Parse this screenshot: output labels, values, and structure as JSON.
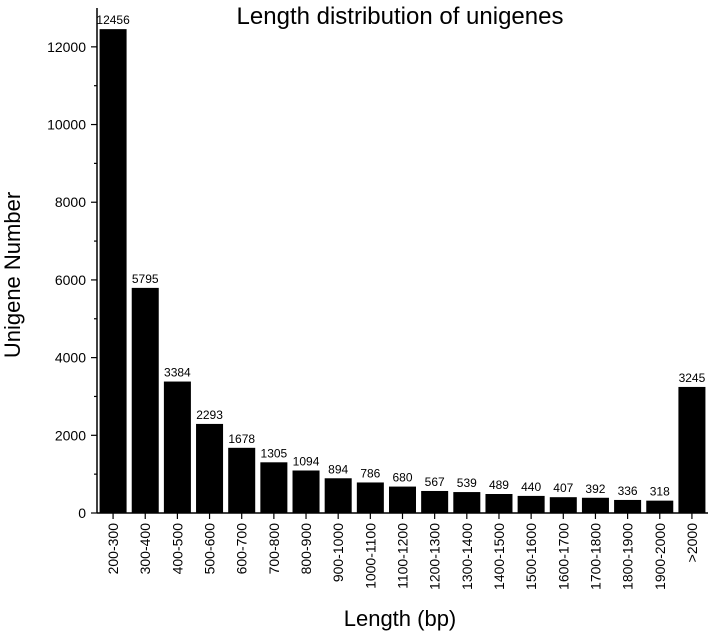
{
  "chart_data": {
    "type": "bar",
    "title": "Length distribution of unigenes",
    "xlabel": "Length (bp)",
    "ylabel": "Unigene Number",
    "categories": [
      "200-300",
      "300-400",
      "400-500",
      "500-600",
      "600-700",
      "700-800",
      "800-900",
      "900-1000",
      "1000-1100",
      "1100-1200",
      "1200-1300",
      "1300-1400",
      "1400-1500",
      "1500-1600",
      "1600-1700",
      "1700-1800",
      "1800-1900",
      "1900-2000",
      ">2000"
    ],
    "values": [
      12456,
      5795,
      3384,
      2293,
      1678,
      1305,
      1094,
      894,
      786,
      680,
      567,
      539,
      489,
      440,
      407,
      392,
      336,
      318,
      3245
    ],
    "ylim": [
      0,
      13000
    ],
    "yticks": [
      0,
      2000,
      4000,
      6000,
      8000,
      10000,
      12000
    ],
    "grid": false,
    "bar_color": "#000000"
  }
}
